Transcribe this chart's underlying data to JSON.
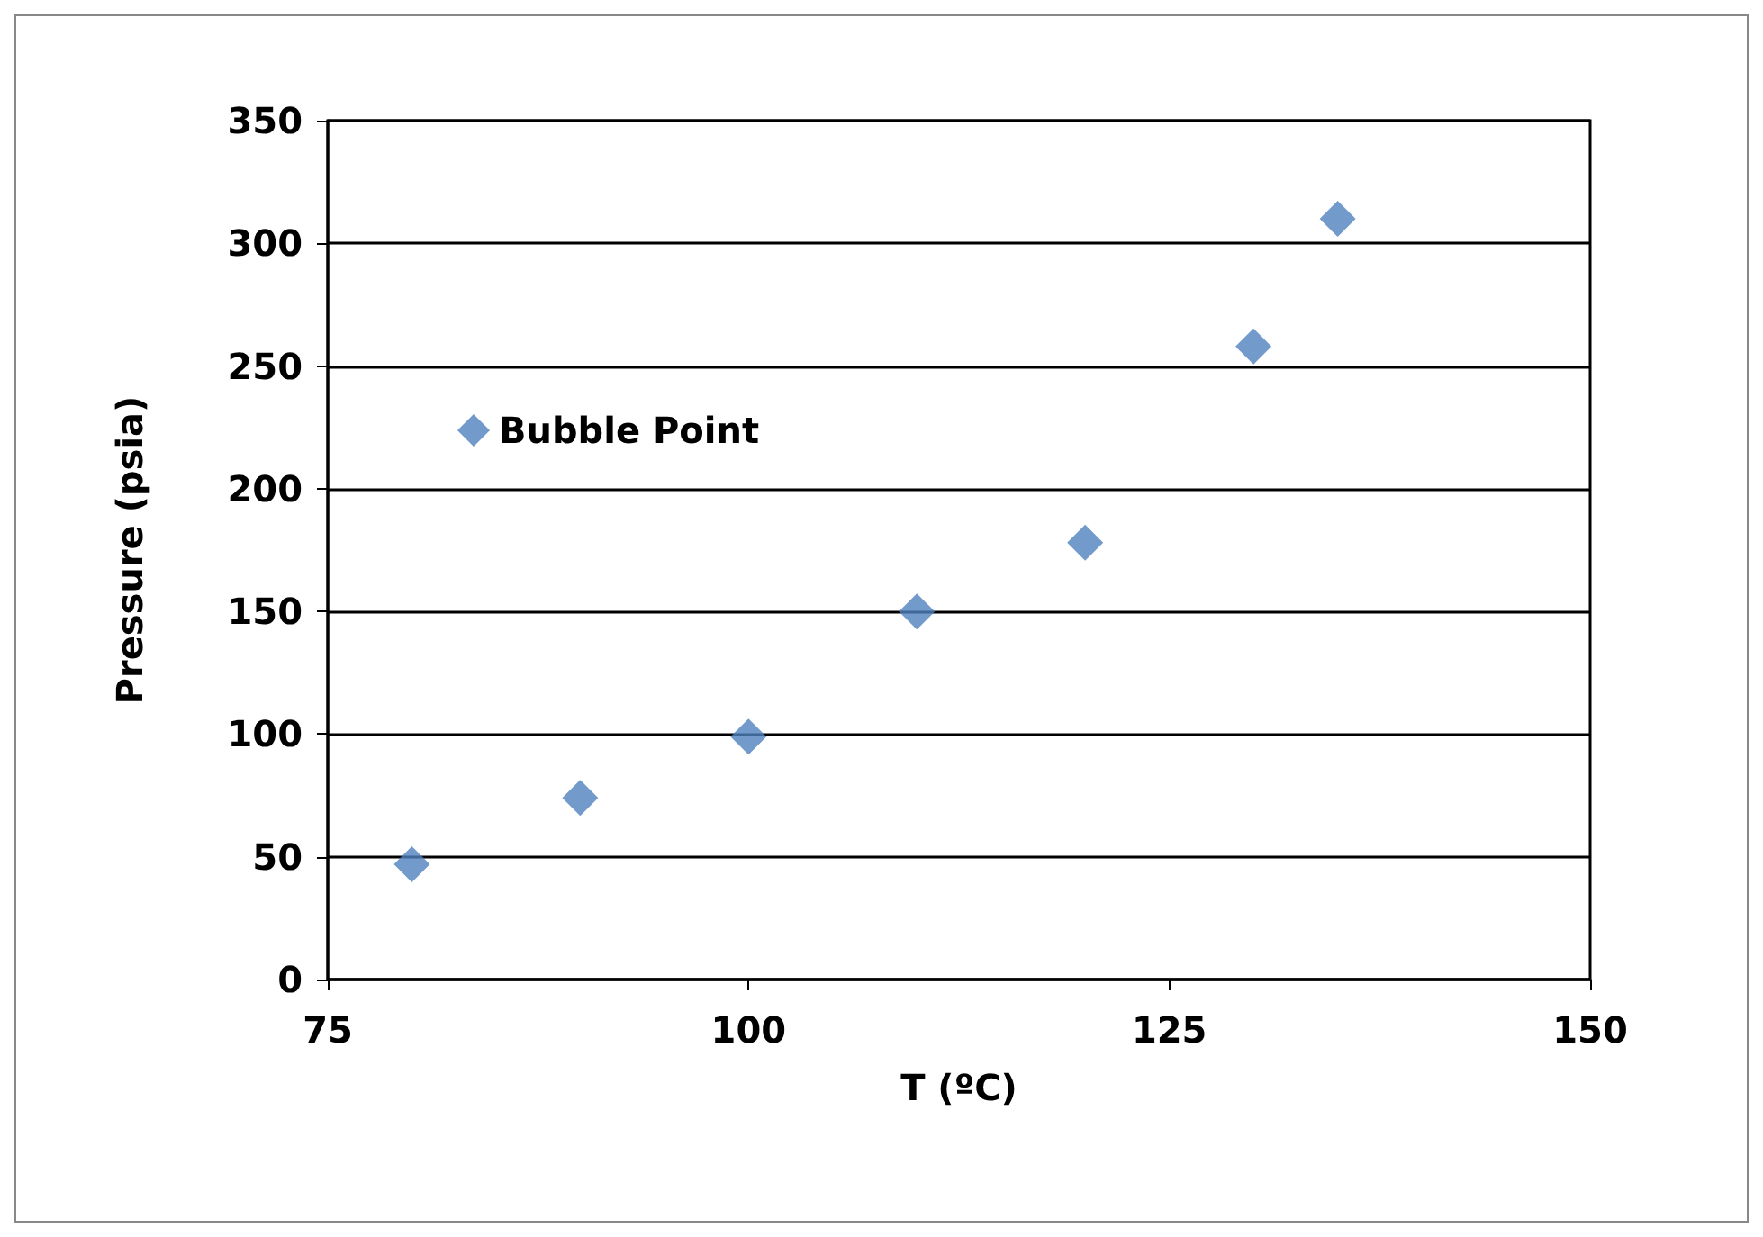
{
  "chart_data": {
    "type": "scatter",
    "xlabel": "T (ºC)",
    "ylabel": "Pressure (psia)",
    "x": [
      80,
      90,
      100,
      110,
      120,
      130,
      135
    ],
    "series": [
      {
        "name": "Bubble Point",
        "color": "#4f81bd",
        "values": [
          47,
          74,
          99,
          150,
          178,
          258,
          310
        ]
      }
    ],
    "xlim": [
      75,
      150
    ],
    "xticks": [
      75,
      100,
      125,
      150
    ],
    "ylim": [
      0,
      350
    ],
    "yticks": [
      0,
      50,
      100,
      150,
      200,
      250,
      300,
      350
    ],
    "grid": "y",
    "legend": "top left",
    "marker": "diamond"
  }
}
